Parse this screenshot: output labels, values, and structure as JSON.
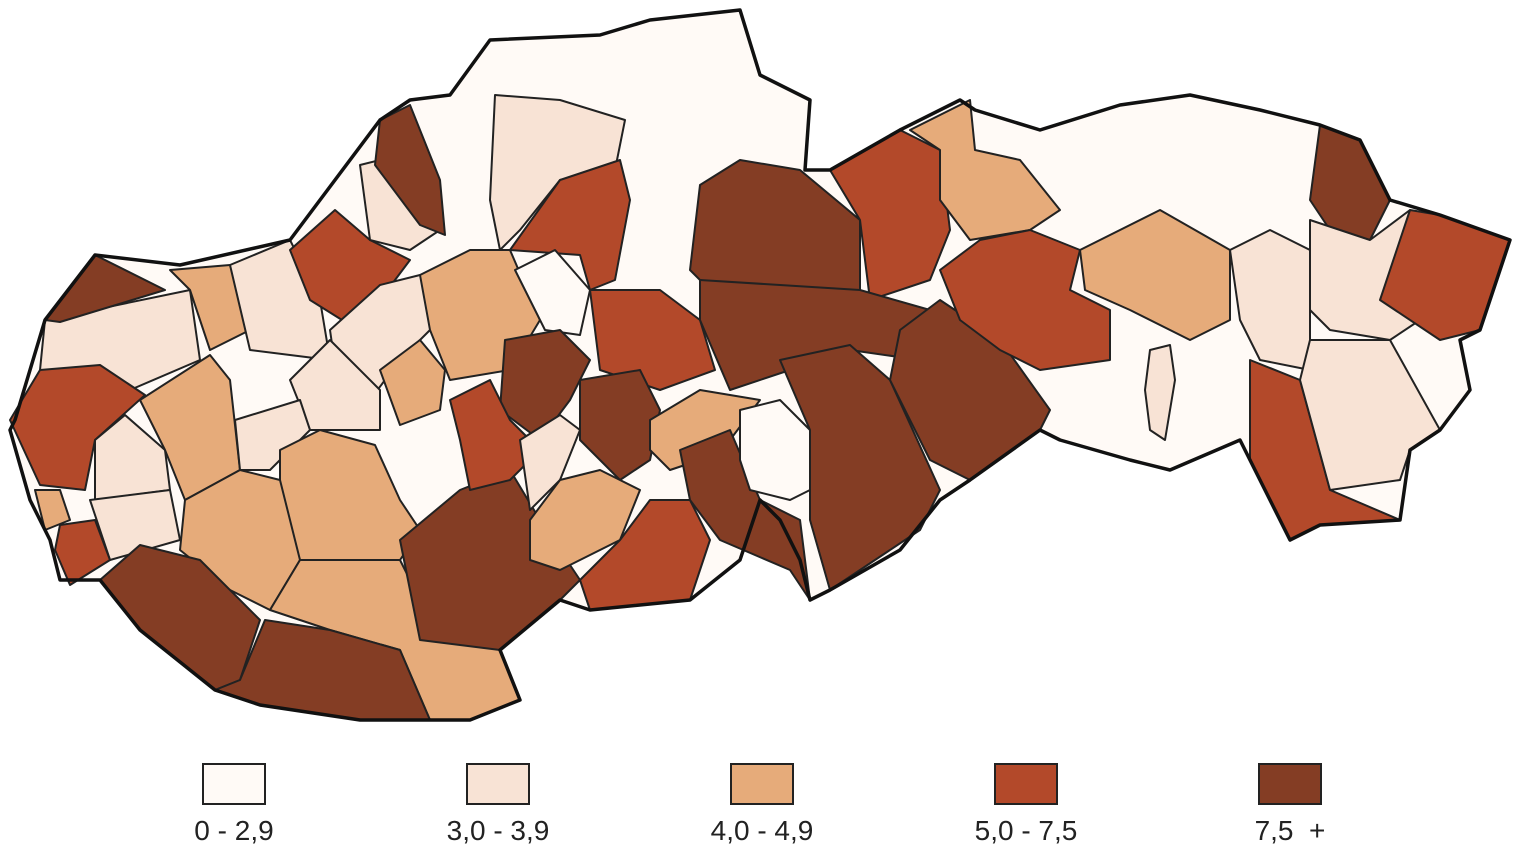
{
  "legend": {
    "items": [
      {
        "label": "0 - 2,9",
        "color": "#fffaf6"
      },
      {
        "label": "3,0 - 3,9",
        "color": "#f8e3d5"
      },
      {
        "label": "4,0 - 4,9",
        "color": "#e6ab7a"
      },
      {
        "label": "5,0 - 7,5",
        "color": "#b3492a"
      },
      {
        "label": "7,5  +",
        "color": "#843d24"
      }
    ]
  }
}
